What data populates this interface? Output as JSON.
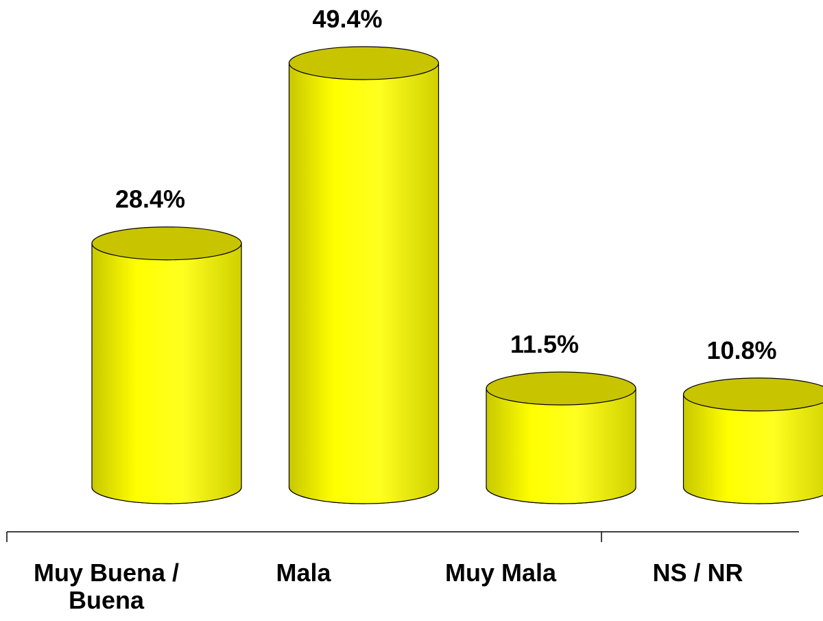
{
  "chart_data": {
    "type": "bar",
    "categories": [
      "Muy Buena / Buena",
      "Mala",
      "Muy Mala",
      "NS / NR"
    ],
    "values": [
      28.4,
      49.4,
      11.5,
      10.8
    ],
    "value_labels": [
      "28.4%",
      "49.4%",
      "11.5%",
      "10.8%"
    ],
    "color": "#ffff00"
  }
}
